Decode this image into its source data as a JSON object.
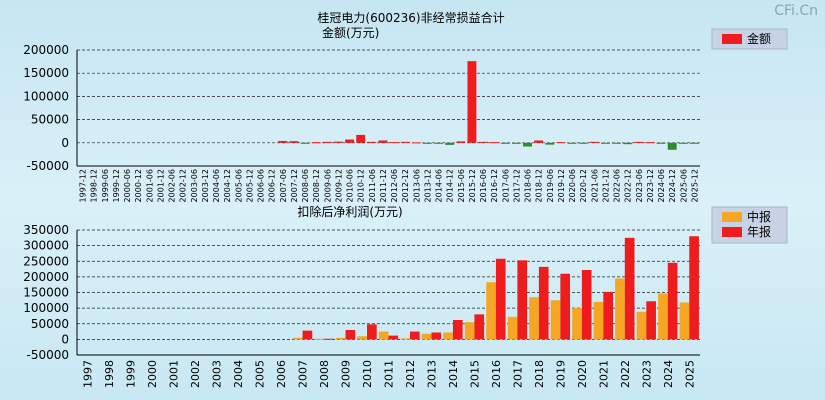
{
  "watermark": "CFi.Cn",
  "colors": {
    "red": "#ee1c1c",
    "green": "#2e8b2e",
    "orange": "#f5a623"
  },
  "chart_data": [
    {
      "type": "bar",
      "title": "桂冠电力(600236)非经常损益合计",
      "ylabel": "金额(万元)",
      "legend": [
        {
          "name": "金额",
          "color": "#ee1c1c"
        }
      ],
      "legend_position": "top-right",
      "ylim": [
        -50000,
        200000
      ],
      "yticks": [
        200000,
        150000,
        100000,
        50000,
        0,
        -50000
      ],
      "categories": [
        "1997-12",
        "1998-12",
        "1999-06",
        "1999-12",
        "2000-06",
        "2000-12",
        "2001-06",
        "2001-12",
        "2002-06",
        "2002-12",
        "2003-06",
        "2003-12",
        "2004-06",
        "2004-12",
        "2005-06",
        "2005-12",
        "2006-06",
        "2006-12",
        "2007-06",
        "2007-12",
        "2008-06",
        "2008-12",
        "2009-06",
        "2009-12",
        "2010-06",
        "2010-12",
        "2011-06",
        "2011-12",
        "2012-06",
        "2012-12",
        "2013-06",
        "2013-12",
        "2014-06",
        "2014-12",
        "2015-06",
        "2015-12",
        "2016-06",
        "2016-12",
        "2017-06",
        "2017-12",
        "2018-06",
        "2018-12",
        "2019-06",
        "2019-12",
        "2020-06",
        "2020-12",
        "2021-06",
        "2021-12",
        "2022-06",
        "2022-12",
        "2023-06",
        "2023-12",
        "2024-06",
        "2024-12",
        "2025-06",
        "2025-12"
      ],
      "values": [
        0,
        0,
        0,
        0,
        0,
        0,
        0,
        0,
        0,
        0,
        0,
        0,
        0,
        0,
        0,
        0,
        0,
        0,
        4000,
        3500,
        -1000,
        1500,
        2000,
        2500,
        7000,
        17000,
        2000,
        5000,
        1500,
        2000,
        1000,
        -1500,
        -2000,
        -4500,
        3000,
        176000,
        2000,
        1500,
        -1500,
        -2000,
        -8000,
        5000,
        -4000,
        1500,
        -2000,
        -1500,
        2000,
        -500,
        -2000,
        -3000,
        2000,
        1500,
        -1000,
        -15000,
        -2000,
        -1500
      ]
    },
    {
      "type": "bar",
      "title": "扣除后净利润(万元)",
      "legend": [
        {
          "name": "中报",
          "color": "#f5a623"
        },
        {
          "name": "年报",
          "color": "#ee1c1c"
        }
      ],
      "legend_position": "top-right",
      "ylim": [
        -50000,
        350000
      ],
      "yticks": [
        350000,
        300000,
        250000,
        200000,
        150000,
        100000,
        50000,
        0,
        -50000
      ],
      "categories": [
        "1997",
        "1998",
        "1999",
        "2000",
        "2001",
        "2002",
        "2003",
        "2004",
        "2005",
        "2006",
        "2007",
        "2008",
        "2009",
        "2010",
        "2011",
        "2012",
        "2013",
        "2014",
        "2015",
        "2016",
        "2017",
        "2018",
        "2019",
        "2020",
        "2021",
        "2022",
        "2023",
        "2024",
        "2025"
      ],
      "series": [
        {
          "name": "中报",
          "values": [
            0,
            0,
            0,
            0,
            0,
            0,
            0,
            0,
            0,
            0,
            5000,
            2000,
            5000,
            10000,
            25000,
            3000,
            18000,
            22000,
            55000,
            183000,
            72000,
            135000,
            125000,
            100000,
            120000,
            195000,
            88000,
            147000,
            118000
          ]
        },
        {
          "name": "年报",
          "values": [
            0,
            0,
            0,
            0,
            0,
            0,
            0,
            0,
            0,
            0,
            28000,
            2000,
            30000,
            48000,
            12000,
            25000,
            22000,
            62000,
            80000,
            258000,
            253000,
            232000,
            210000,
            222000,
            152000,
            325000,
            122000,
            245000,
            330000
          ]
        }
      ]
    }
  ]
}
